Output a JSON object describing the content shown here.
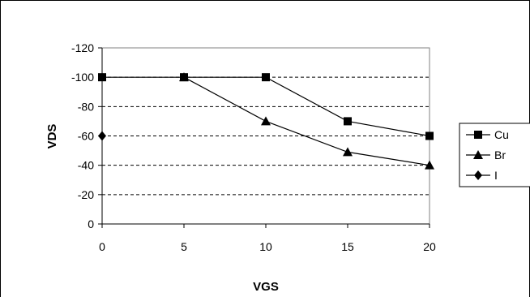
{
  "chart_data": {
    "type": "line",
    "xlabel": "VGS",
    "ylabel": "VDS",
    "x": [
      0,
      5,
      10,
      15,
      20
    ],
    "xlim": [
      0,
      20
    ],
    "xticks": [
      "0",
      "5",
      "10",
      "15",
      "20"
    ],
    "ylim": [
      0,
      -120
    ],
    "yticks": [
      "-120",
      "-100",
      "-80",
      "-60",
      "-40",
      "-20",
      "0"
    ],
    "y_tick_values": [
      -120,
      -100,
      -80,
      -60,
      -40,
      -20,
      0
    ],
    "grid": "horizontal dashed",
    "legend_position": "right",
    "series": [
      {
        "name": "Cu",
        "marker": "square",
        "points": [
          [
            0,
            -100
          ],
          [
            5,
            -100
          ],
          [
            10,
            -100
          ],
          [
            15,
            -70
          ],
          [
            20,
            -60
          ]
        ]
      },
      {
        "name": "Br",
        "marker": "triangle",
        "points": [
          [
            5,
            -100
          ],
          [
            10,
            -70
          ],
          [
            15,
            -49
          ],
          [
            20,
            -40
          ]
        ]
      },
      {
        "name": "I",
        "marker": "diamond",
        "points": [
          [
            0,
            -60
          ]
        ]
      }
    ],
    "colors": {
      "line": "#000000",
      "grid": "#000000",
      "background": "#ffffff"
    }
  }
}
